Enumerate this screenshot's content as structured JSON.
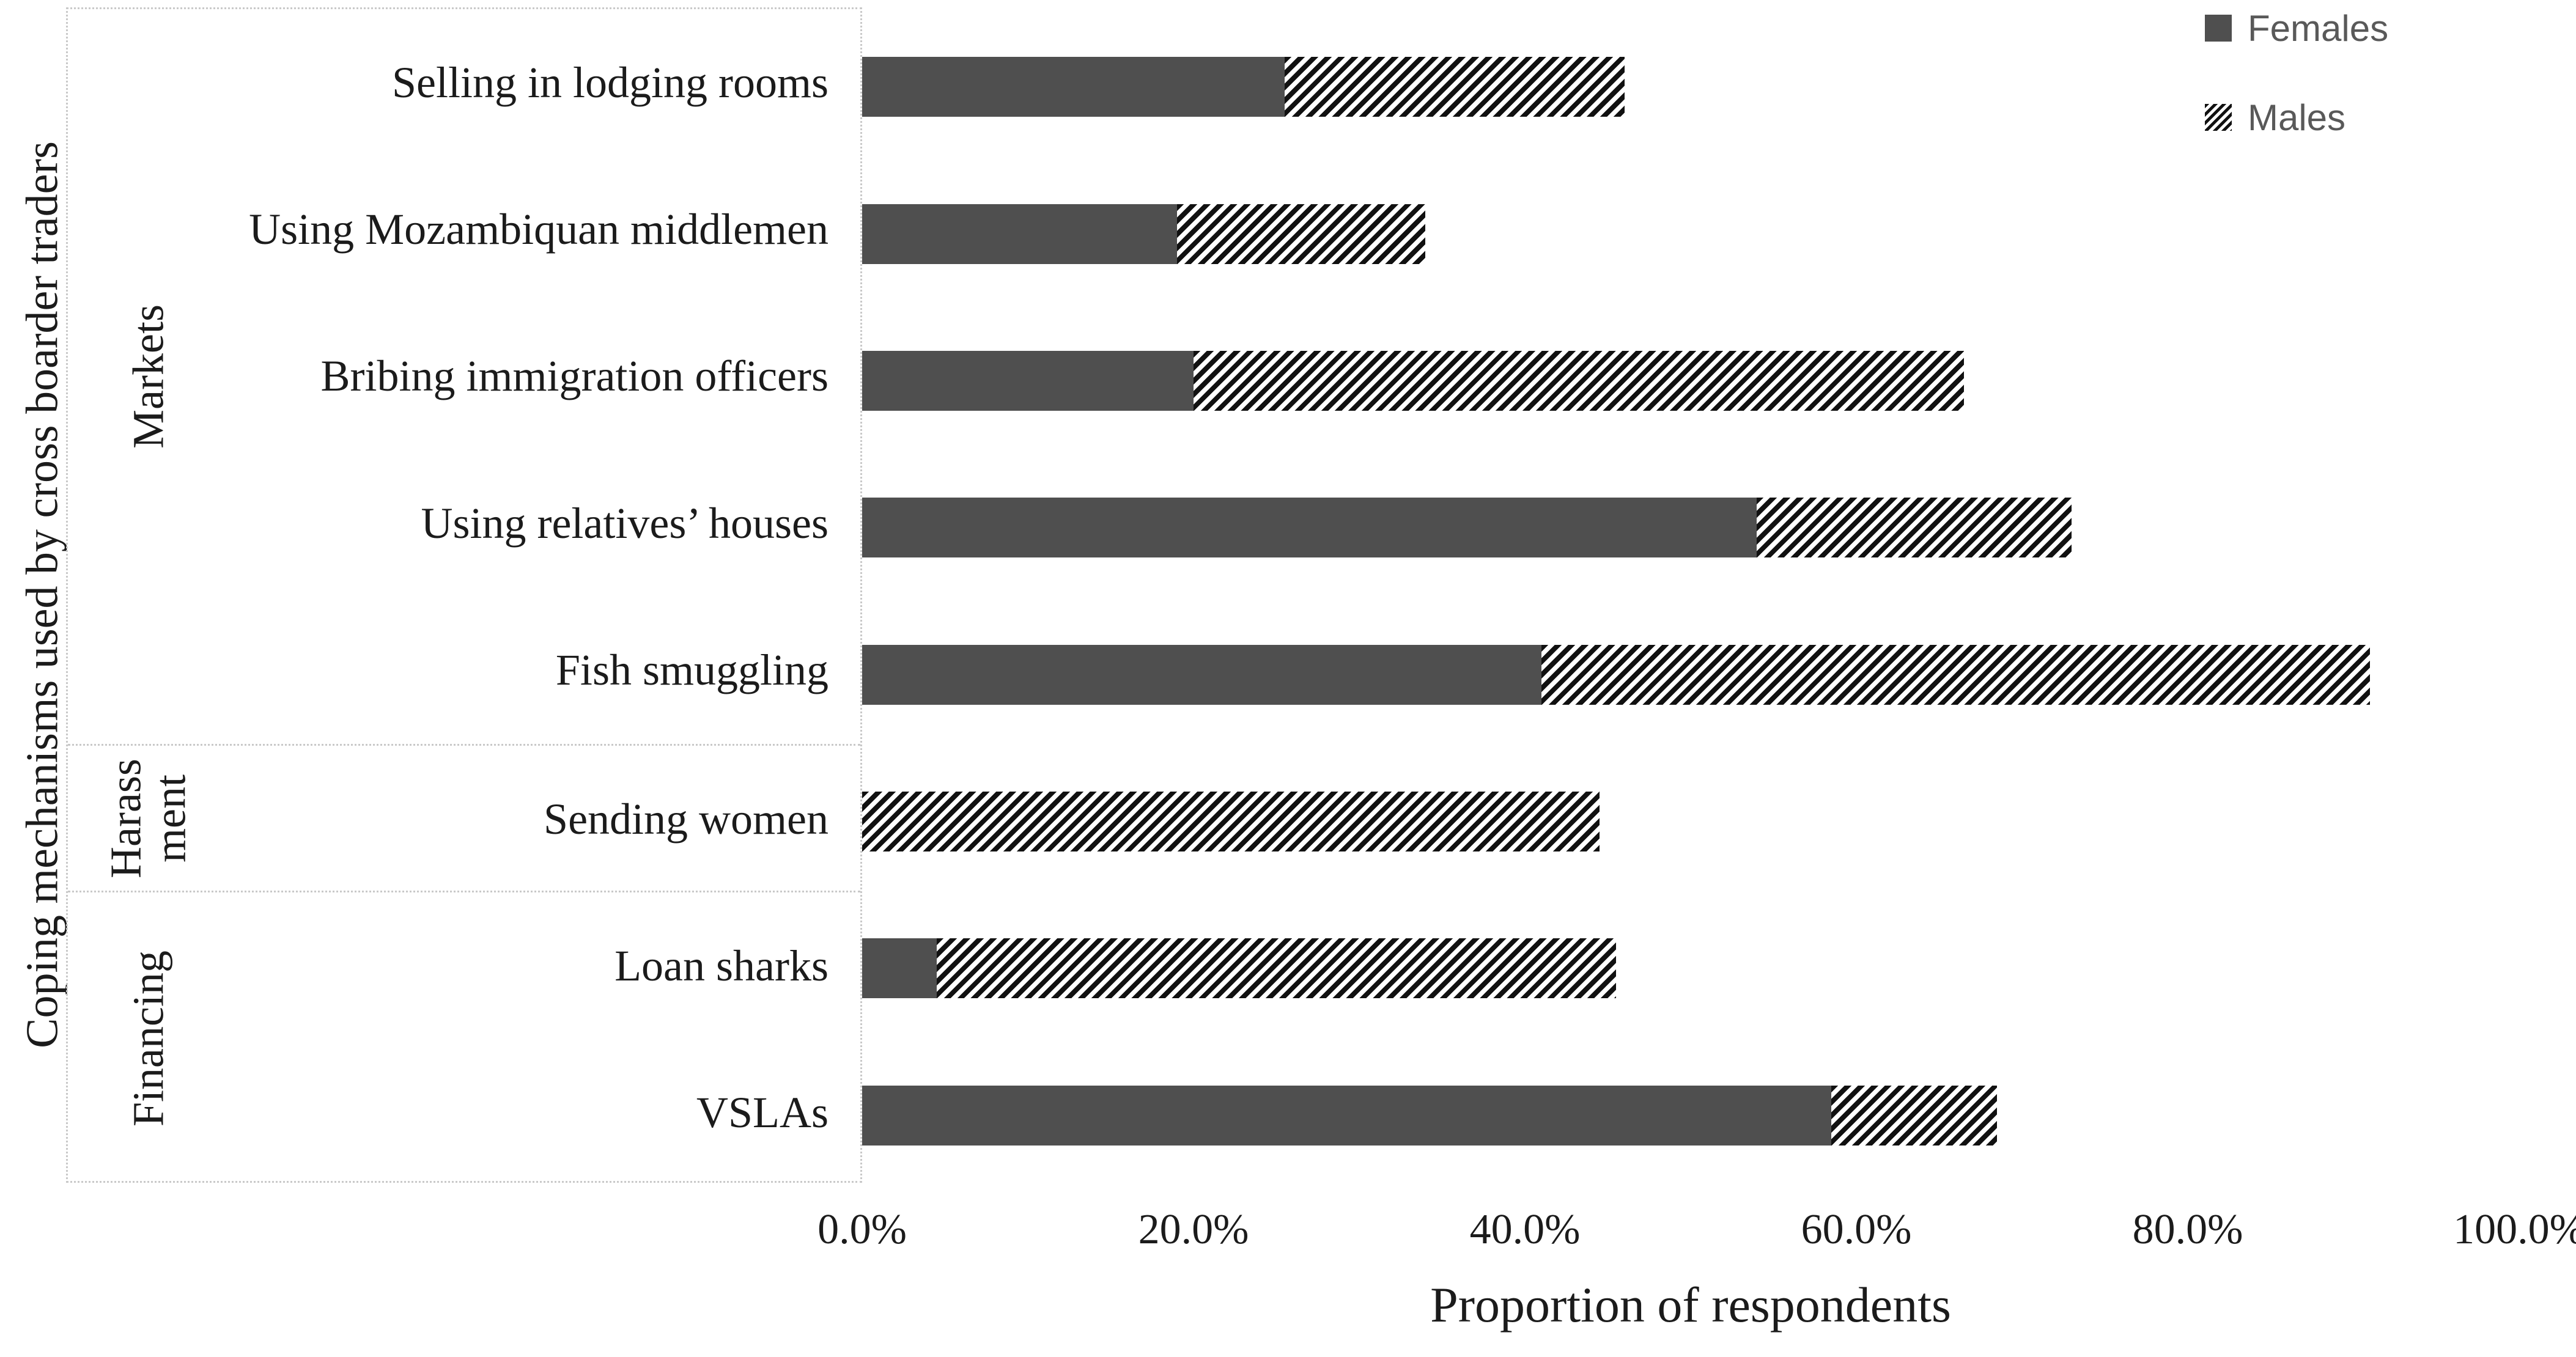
{
  "colors": {
    "bar_females": "#4f4f4f",
    "hatch_stroke": "#111111",
    "legend_text": "#595959",
    "axis_text": "#1b1b1b",
    "border_gray": "#c9c9c9"
  },
  "chart_data": {
    "type": "bar",
    "orientation": "horizontal",
    "stacked": true,
    "title": "",
    "xlabel": "Proportion of respondents",
    "ylabel": "Coping mechanisms used by cross boarder traders",
    "xlim": [
      0,
      100
    ],
    "x_tick_step_percent": 20,
    "x_ticks": [
      "0.0%",
      "20.0%",
      "40.0%",
      "60.0%",
      "80.0%",
      "100.0%"
    ],
    "grid": false,
    "legend_position": "top-right",
    "groups": [
      {
        "label": "Markets",
        "items": [
          "Selling in lodging rooms",
          "Using Mozambiquan middlemen",
          "Bribing immigration officers",
          "Using relatives’ houses",
          "Fish smuggling"
        ]
      },
      {
        "label": "Harass\nment",
        "items": [
          "Sending women"
        ]
      },
      {
        "label": "Financing",
        "items": [
          "Loan sharks",
          "VSLAs"
        ]
      }
    ],
    "categories": [
      "Selling in lodging rooms",
      "Using Mozambiquan middlemen",
      "Bribing immigration officers",
      "Using relatives’ houses",
      "Fish smuggling",
      "Sending women",
      "Loan sharks",
      "VSLAs"
    ],
    "series": [
      {
        "name": "Females",
        "style": "solid-gray",
        "values": [
          25.5,
          19.0,
          20.0,
          54.0,
          41.0,
          0.0,
          4.5,
          58.5
        ]
      },
      {
        "name": "Males",
        "style": "black-diagonal-hatch",
        "values": [
          20.5,
          15.0,
          46.5,
          19.0,
          50.0,
          44.5,
          41.0,
          10.0
        ]
      }
    ]
  }
}
